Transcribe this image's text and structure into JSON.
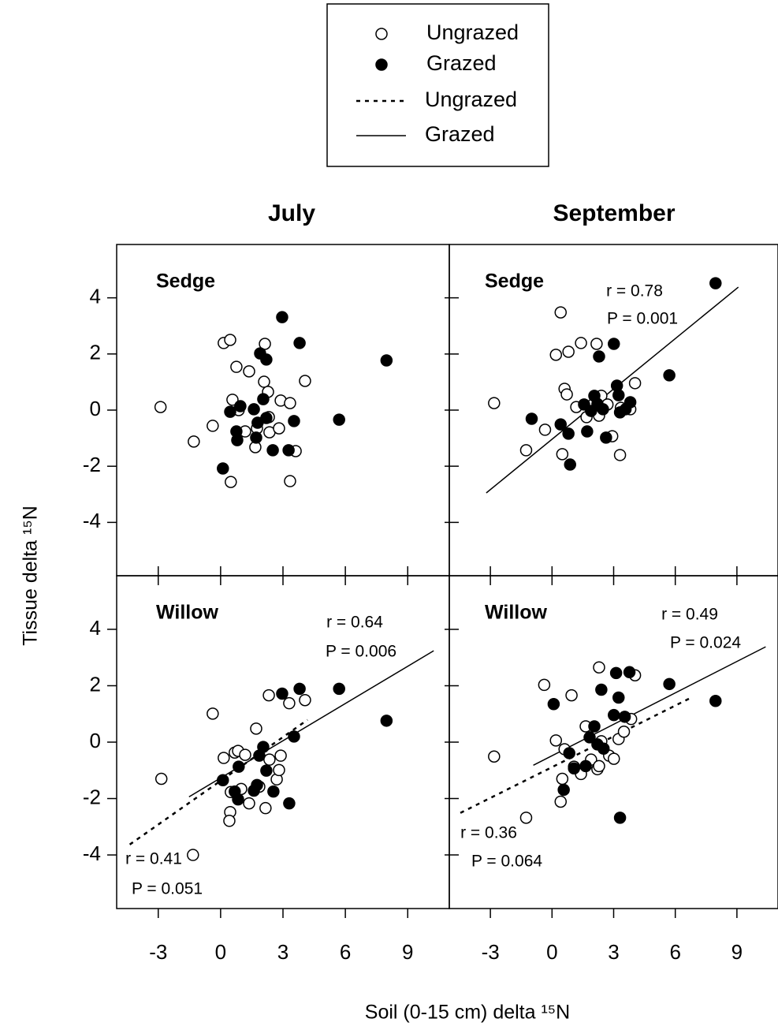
{
  "figure": {
    "columns": [
      "July",
      "September"
    ],
    "xlabel": "Soil (0-15 cm) delta ¹⁵N",
    "ylabel": "Tissue delta ¹⁵N"
  },
  "chart_data": [
    {
      "type": "scatter",
      "label": "Sedge",
      "xlim": [
        -5,
        11
      ],
      "ylim": [
        -5.9,
        5.9
      ],
      "xticks": [
        -3,
        0,
        3,
        6,
        9
      ],
      "yticks": [
        -4,
        -2,
        0,
        2,
        4
      ],
      "series": [
        {
          "name": "Ungrazed",
          "marker": "open",
          "color": "#000000",
          "x": [
            -2.89,
            -1.29,
            -0.38,
            0.15,
            0.46,
            0.49,
            0.57,
            0.76,
            0.87,
            1.37,
            1.18,
            1.67,
            1.75,
            2.09,
            2.13,
            2.28,
            2.32,
            2.35,
            2.81,
            2.89,
            3.34,
            3.34,
            3.61,
            4.06
          ],
          "values": [
            0.11,
            -1.12,
            -0.56,
            2.39,
            2.5,
            -2.56,
            0.37,
            1.54,
            0.0,
            1.38,
            -0.76,
            -1.32,
            -0.65,
            1.01,
            2.36,
            0.65,
            -0.25,
            -0.79,
            -0.65,
            0.34,
            0.25,
            -2.53,
            -1.46,
            1.04
          ]
        },
        {
          "name": "Grazed",
          "marker": "filled",
          "color": "#000000",
          "x": [
            2.96,
            3.8,
            7.98,
            2.2,
            1.9,
            0.11,
            0.46,
            0.76,
            0.8,
            0.95,
            1.6,
            1.78,
            1.71,
            2.05,
            2.2,
            2.51,
            3.27,
            3.53,
            5.7
          ],
          "values": [
            3.31,
            2.39,
            1.77,
            1.8,
            2.02,
            -2.08,
            -0.06,
            -0.76,
            -1.07,
            0.14,
            0.03,
            -0.45,
            -0.98,
            0.39,
            -0.28,
            -1.43,
            -1.43,
            -0.39,
            -0.34
          ]
        }
      ],
      "fits": [],
      "annotations": []
    },
    {
      "type": "scatter",
      "label": "Sedge",
      "xlim": [
        -5,
        11
      ],
      "ylim": [
        -5.9,
        5.9
      ],
      "xticks": [
        -3,
        0,
        3,
        6,
        9
      ],
      "yticks": [
        -4,
        -2,
        0,
        2,
        4
      ],
      "series": [
        {
          "name": "Ungrazed",
          "marker": "open",
          "color": "#000000",
          "x": [
            -2.82,
            -1.26,
            -0.34,
            0.19,
            0.42,
            0.5,
            0.61,
            0.72,
            0.8,
            1.18,
            1.41,
            1.68,
            2.02,
            2.17,
            2.29,
            2.4,
            2.7,
            2.93,
            3.31,
            3.35,
            3.81,
            4.04
          ],
          "values": [
            0.25,
            -1.43,
            -0.7,
            1.97,
            3.48,
            -1.57,
            0.76,
            0.56,
            2.08,
            0.11,
            2.39,
            -0.25,
            0.22,
            2.36,
            -0.2,
            0.51,
            0.2,
            -0.93,
            -1.6,
            0.08,
            0.03,
            0.96
          ]
        },
        {
          "name": "Grazed",
          "marker": "filled",
          "color": "#000000",
          "x": [
            7.96,
            5.71,
            3.01,
            2.29,
            -0.99,
            0.42,
            0.8,
            0.88,
            1.56,
            1.71,
            1.9,
            2.06,
            2.21,
            2.48,
            2.63,
            3.16,
            3.24,
            3.31,
            3.58,
            3.81
          ],
          "values": [
            4.52,
            1.24,
            2.36,
            1.91,
            -0.31,
            -0.51,
            -0.84,
            -1.94,
            0.2,
            -0.76,
            -0.03,
            0.51,
            0.22,
            0.03,
            -0.98,
            0.87,
            0.53,
            -0.08,
            0.03,
            0.28
          ]
        }
      ],
      "fits": [
        {
          "name": "Grazed",
          "dash": "solid",
          "x": [
            -3.2,
            9.07
          ],
          "values": [
            -2.95,
            4.38
          ]
        }
      ],
      "annotations": [
        "r = 0.78",
        "P = 0.001"
      ]
    },
    {
      "type": "scatter",
      "label": "Willow",
      "xlim": [
        -5,
        11
      ],
      "ylim": [
        -5.9,
        5.9
      ],
      "xticks": [
        -3,
        0,
        3,
        6,
        9
      ],
      "yticks": [
        -4,
        -2,
        0,
        2,
        4
      ],
      "series": [
        {
          "name": "Ungrazed",
          "marker": "open",
          "color": "#000000",
          "x": [
            -2.85,
            -0.38,
            -1.33,
            0.15,
            0.46,
            0.42,
            0.49,
            0.68,
            0.84,
            0.99,
            1.18,
            1.37,
            1.71,
            1.86,
            2.16,
            2.32,
            2.35,
            2.7,
            2.81,
            2.89,
            3.3,
            4.06
          ],
          "values": [
            -1.3,
            1.01,
            -4.0,
            -0.56,
            -2.48,
            -2.79,
            -1.77,
            -0.37,
            -0.31,
            -1.66,
            -0.45,
            -2.17,
            0.48,
            -1.58,
            -2.34,
            1.66,
            -0.62,
            -1.32,
            -0.99,
            -0.48,
            1.38,
            1.49
          ]
        },
        {
          "name": "Grazed",
          "marker": "filled",
          "color": "#000000",
          "x": [
            2.96,
            3.8,
            5.7,
            7.98,
            0.11,
            0.87,
            0.68,
            0.84,
            1.6,
            1.75,
            1.86,
            2.05,
            2.2,
            2.54,
            3.3,
            3.53
          ],
          "values": [
            1.72,
            1.89,
            1.89,
            0.76,
            -1.35,
            -0.87,
            -1.75,
            -2.03,
            -1.72,
            -1.52,
            -0.48,
            -0.17,
            -1.01,
            -1.75,
            -2.17,
            0.2
          ]
        }
      ],
      "fits": [
        {
          "name": "Ungrazed",
          "dash": "dotted",
          "x": [
            -4.37,
            4.18
          ],
          "values": [
            -3.63,
            0.79
          ]
        },
        {
          "name": "Grazed",
          "dash": "solid",
          "x": [
            -1.52,
            10.25
          ],
          "values": [
            -1.94,
            3.24
          ]
        }
      ],
      "annotations": [
        "r = 0.64",
        "P = 0.006",
        "r = 0.41",
        "P = 0.051"
      ]
    },
    {
      "type": "scatter",
      "label": "Willow",
      "xlim": [
        -5,
        11
      ],
      "ylim": [
        -5.9,
        5.9
      ],
      "xticks": [
        -3,
        0,
        3,
        6,
        9
      ],
      "yticks": [
        -4,
        -2,
        0,
        2,
        4
      ],
      "series": [
        {
          "name": "Ungrazed",
          "marker": "open",
          "color": "#000000",
          "x": [
            -2.82,
            -1.26,
            -0.38,
            0.19,
            0.42,
            0.5,
            0.61,
            0.95,
            1.07,
            1.41,
            1.64,
            1.9,
            2.21,
            2.29,
            2.4,
            2.78,
            3.01,
            3.24,
            3.5,
            3.85,
            4.04,
            2.29
          ],
          "values": [
            -0.51,
            -2.68,
            2.03,
            0.06,
            -2.11,
            -1.3,
            -0.25,
            1.66,
            -0.87,
            -1.13,
            0.56,
            -0.62,
            -0.96,
            2.65,
            0.03,
            -0.48,
            -0.59,
            0.11,
            0.37,
            0.82,
            2.37,
            -0.85
          ]
        },
        {
          "name": "Grazed",
          "marker": "filled",
          "color": "#000000",
          "x": [
            0.08,
            0.57,
            0.84,
            1.07,
            1.64,
            1.83,
            2.06,
            2.21,
            2.4,
            2.51,
            3.01,
            3.12,
            3.24,
            3.31,
            3.54,
            3.77,
            5.71,
            7.96
          ],
          "values": [
            1.35,
            -1.69,
            -0.39,
            -0.93,
            -0.85,
            0.17,
            0.56,
            -0.08,
            1.86,
            -0.23,
            0.96,
            2.45,
            1.58,
            -2.68,
            0.9,
            2.48,
            2.06,
            1.46
          ]
        }
      ],
      "fits": [
        {
          "name": "Ungrazed",
          "dash": "dotted",
          "x": [
            -4.46,
            6.78
          ],
          "values": [
            -2.51,
            1.58
          ]
        },
        {
          "name": "Grazed",
          "dash": "solid",
          "x": [
            -0.91,
            10.4
          ],
          "values": [
            -0.82,
            3.38
          ]
        }
      ],
      "annotations": [
        "r = 0.49",
        "P = 0.024",
        "r = 0.36",
        "P = 0.064"
      ]
    }
  ]
}
